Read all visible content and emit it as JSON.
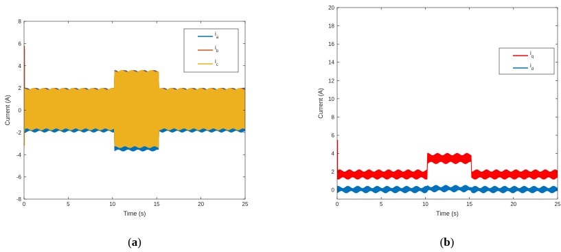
{
  "chart_data": [
    {
      "type": "line",
      "caption": "a",
      "xlabel": "Time (s)",
      "ylabel": "Current (A)",
      "xlim": [
        0,
        25
      ],
      "ylim": [
        -8,
        8
      ],
      "xticks": [
        "0",
        "5",
        "10",
        "15",
        "20",
        "25"
      ],
      "yticks": [
        "-8",
        "-6",
        "-4",
        "-2",
        "0",
        "2",
        "4",
        "6",
        "8"
      ],
      "legend_position": "top-right",
      "grid": false,
      "series": [
        {
          "name": "i",
          "subscript": "a",
          "color": "#0072BD",
          "envelope": {
            "x": [
              0,
              10.2,
              10.2,
              15.2,
              15.2,
              25
            ],
            "upper": [
              1.9,
              1.9,
              3.5,
              3.5,
              1.9,
              1.9
            ],
            "lower": [
              -1.9,
              -1.9,
              -3.6,
              -3.6,
              -1.9,
              -1.9
            ]
          },
          "initial_peak": 5.5
        },
        {
          "name": "i",
          "subscript": "b",
          "color": "#D95319",
          "envelope": {
            "x": [
              0,
              10.2,
              10.2,
              15.2,
              15.2,
              25
            ],
            "upper": [
              1.9,
              1.9,
              3.5,
              3.5,
              1.9,
              1.9
            ],
            "lower": [
              -1.6,
              -1.6,
              -3.2,
              -3.2,
              -1.6,
              -1.6
            ]
          },
          "initial_peak": 5.8
        },
        {
          "name": "i",
          "subscript": "c",
          "color": "#EDB120",
          "envelope": {
            "x": [
              0,
              10.2,
              10.2,
              15.2,
              15.2,
              25
            ],
            "upper": [
              1.9,
              1.9,
              3.5,
              3.5,
              1.9,
              1.9
            ],
            "lower": [
              -1.7,
              -1.7,
              -3.3,
              -3.3,
              -1.7,
              -1.7
            ]
          },
          "initial_peak": -3.2
        }
      ]
    },
    {
      "type": "line",
      "caption": "b",
      "xlabel": "Time (s)",
      "ylabel": "Current (A)",
      "xlim": [
        0,
        25
      ],
      "ylim": [
        -1,
        20
      ],
      "xticks": [
        "0",
        "5",
        "10",
        "15",
        "20",
        "25"
      ],
      "yticks": [
        "0",
        "2",
        "4",
        "6",
        "8",
        "10",
        "12",
        "14",
        "16",
        "18",
        "20"
      ],
      "legend_position": "top-right",
      "grid": false,
      "series": [
        {
          "name": "i",
          "subscript": "q",
          "color": "#FF0000",
          "envelope": {
            "x": [
              0,
              10.2,
              10.2,
              15.2,
              15.2,
              25
            ],
            "upper": [
              2.1,
              2.1,
              3.9,
              3.9,
              2.1,
              2.1
            ],
            "lower": [
              1.3,
              1.3,
              3.0,
              3.0,
              1.3,
              1.3
            ]
          },
          "initial_peak": 5.5
        },
        {
          "name": "i",
          "subscript": "d",
          "color": "#0072BD",
          "envelope": {
            "x": [
              0,
              10.2,
              10.2,
              15.2,
              15.2,
              25
            ],
            "upper": [
              0.3,
              0.3,
              0.4,
              0.4,
              0.3,
              0.3
            ],
            "lower": [
              -0.2,
              -0.2,
              -0.1,
              -0.1,
              -0.2,
              -0.2
            ]
          },
          "initial_peak": 0.3
        }
      ]
    }
  ]
}
